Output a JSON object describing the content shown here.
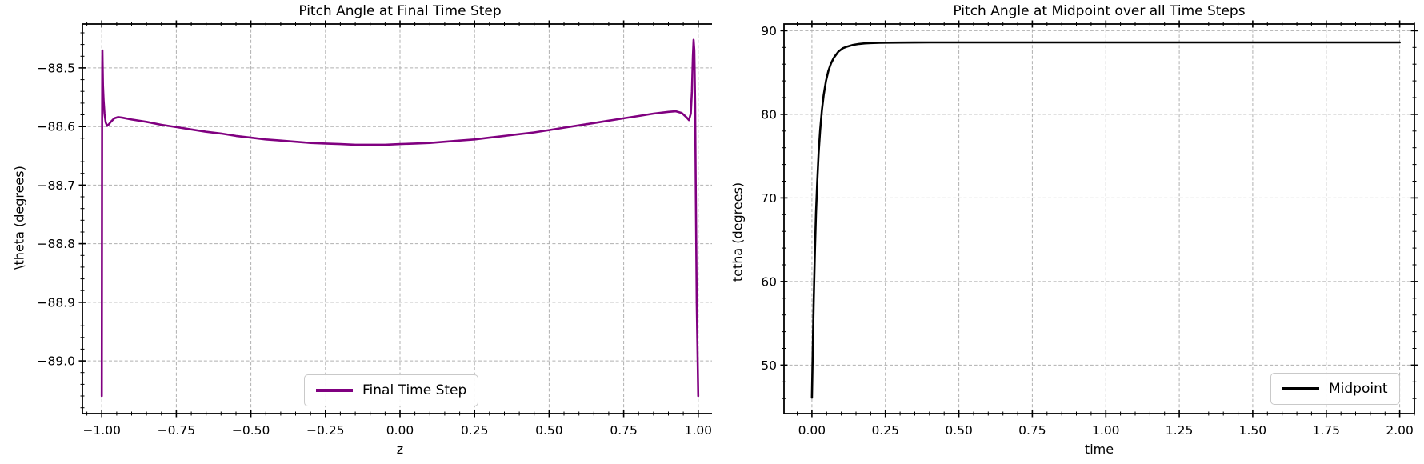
{
  "figure": {
    "background": "#ffffff",
    "grid_color": "#b0b0b0",
    "spine_color": "#000000"
  },
  "chart_data": [
    {
      "type": "line",
      "title": "Pitch Angle at Final Time Step",
      "xlabel": "z",
      "ylabel": "\\theta (degrees)",
      "grid": true,
      "legend": {
        "label": "Final Time Step",
        "position": "lower center"
      },
      "xlim": [
        -1.065,
        1.065
      ],
      "ylim": [
        -89.09,
        -88.425
      ],
      "x_major": {
        "values": [
          -1.0,
          -0.75,
          -0.5,
          -0.25,
          0.0,
          0.25,
          0.5,
          0.75,
          1.0
        ],
        "labels": [
          "−1.00",
          "−0.75",
          "−0.50",
          "−0.25",
          "0.00",
          "0.25",
          "0.50",
          "0.75",
          "1.00"
        ],
        "minor_step": 0.05
      },
      "y_major": {
        "values": [
          -89.0,
          -88.9,
          -88.8,
          -88.7,
          -88.6,
          -88.5
        ],
        "labels": [
          "−89.0",
          "−88.9",
          "−88.8",
          "−88.7",
          "−88.6",
          "−88.5"
        ],
        "minor_step": 0.02
      },
      "series": [
        {
          "name": "Final Time Step",
          "color": "#800080",
          "width": 2.6,
          "points": [
            [
              -1.0,
              -89.06
            ],
            [
              -0.9995,
              -88.85
            ],
            [
              -0.999,
              -88.62
            ],
            [
              -0.9985,
              -88.5
            ],
            [
              -0.998,
              -88.47
            ],
            [
              -0.9975,
              -88.49
            ],
            [
              -0.996,
              -88.53
            ],
            [
              -0.994,
              -88.555
            ],
            [
              -0.991,
              -88.578
            ],
            [
              -0.987,
              -88.593
            ],
            [
              -0.982,
              -88.599
            ],
            [
              -0.976,
              -88.596
            ],
            [
              -0.968,
              -88.591
            ],
            [
              -0.958,
              -88.586
            ],
            [
              -0.945,
              -88.584
            ],
            [
              -0.93,
              -88.585
            ],
            [
              -0.9,
              -88.588
            ],
            [
              -0.85,
              -88.592
            ],
            [
              -0.8,
              -88.597
            ],
            [
              -0.75,
              -88.601
            ],
            [
              -0.7,
              -88.605
            ],
            [
              -0.65,
              -88.609
            ],
            [
              -0.6,
              -88.612
            ],
            [
              -0.55,
              -88.616
            ],
            [
              -0.5,
              -88.619
            ],
            [
              -0.45,
              -88.622
            ],
            [
              -0.4,
              -88.624
            ],
            [
              -0.35,
              -88.626
            ],
            [
              -0.3,
              -88.628
            ],
            [
              -0.25,
              -88.629
            ],
            [
              -0.2,
              -88.63
            ],
            [
              -0.15,
              -88.631
            ],
            [
              -0.1,
              -88.631
            ],
            [
              -0.05,
              -88.631
            ],
            [
              0.0,
              -88.63
            ],
            [
              0.05,
              -88.629
            ],
            [
              0.1,
              -88.628
            ],
            [
              0.15,
              -88.626
            ],
            [
              0.2,
              -88.624
            ],
            [
              0.25,
              -88.622
            ],
            [
              0.3,
              -88.619
            ],
            [
              0.35,
              -88.616
            ],
            [
              0.4,
              -88.613
            ],
            [
              0.45,
              -88.61
            ],
            [
              0.5,
              -88.606
            ],
            [
              0.55,
              -88.602
            ],
            [
              0.6,
              -88.598
            ],
            [
              0.65,
              -88.594
            ],
            [
              0.7,
              -88.59
            ],
            [
              0.75,
              -88.586
            ],
            [
              0.8,
              -88.582
            ],
            [
              0.85,
              -88.578
            ],
            [
              0.9,
              -88.575
            ],
            [
              0.925,
              -88.574
            ],
            [
              0.945,
              -88.577
            ],
            [
              0.96,
              -88.584
            ],
            [
              0.969,
              -88.589
            ],
            [
              0.975,
              -88.578
            ],
            [
              0.979,
              -88.54
            ],
            [
              0.982,
              -88.48
            ],
            [
              0.9845,
              -88.452
            ],
            [
              0.987,
              -88.47
            ],
            [
              0.9895,
              -88.56
            ],
            [
              0.992,
              -88.72
            ],
            [
              0.995,
              -88.9
            ],
            [
              1.0,
              -89.06
            ]
          ]
        }
      ]
    },
    {
      "type": "line",
      "title": "Pitch Angle at Midpoint over all Time Steps",
      "xlabel": "time",
      "ylabel": "tetha (degrees)",
      "grid": true,
      "legend": {
        "label": "Midpoint",
        "position": "lower right"
      },
      "xlim": [
        -0.095,
        2.05
      ],
      "ylim": [
        44.2,
        90.8
      ],
      "x_major": {
        "values": [
          0.0,
          0.25,
          0.5,
          0.75,
          1.0,
          1.25,
          1.5,
          1.75,
          2.0
        ],
        "labels": [
          "0.00",
          "0.25",
          "0.50",
          "0.75",
          "1.00",
          "1.25",
          "1.50",
          "1.75",
          "2.00"
        ],
        "minor_step": 0.05
      },
      "y_major": {
        "values": [
          50,
          60,
          70,
          80,
          90
        ],
        "labels": [
          "50",
          "60",
          "70",
          "80",
          "90"
        ],
        "minor_step": 2
      },
      "series": [
        {
          "name": "Midpoint",
          "color": "#000000",
          "width": 2.6,
          "points": [
            [
              0.0,
              46.1
            ],
            [
              0.003,
              52.0
            ],
            [
              0.006,
              57.5
            ],
            [
              0.01,
              63.5
            ],
            [
              0.014,
              68.2
            ],
            [
              0.018,
              71.8
            ],
            [
              0.023,
              75.4
            ],
            [
              0.028,
              78.1
            ],
            [
              0.034,
              80.5
            ],
            [
              0.04,
              82.3
            ],
            [
              0.048,
              84.0
            ],
            [
              0.056,
              85.2
            ],
            [
              0.065,
              86.1
            ],
            [
              0.075,
              86.8
            ],
            [
              0.09,
              87.5
            ],
            [
              0.105,
              87.9
            ],
            [
              0.12,
              88.1
            ],
            [
              0.14,
              88.3
            ],
            [
              0.16,
              88.42
            ],
            [
              0.18,
              88.48
            ],
            [
              0.2,
              88.52
            ],
            [
              0.23,
              88.55
            ],
            [
              0.26,
              88.57
            ],
            [
              0.3,
              88.58
            ],
            [
              0.35,
              88.59
            ],
            [
              0.4,
              88.6
            ],
            [
              0.5,
              88.6
            ],
            [
              0.6,
              88.6
            ],
            [
              0.8,
              88.6
            ],
            [
              1.0,
              88.6
            ],
            [
              1.25,
              88.6
            ],
            [
              1.5,
              88.6
            ],
            [
              1.75,
              88.6
            ],
            [
              2.0,
              88.6
            ]
          ]
        }
      ]
    }
  ]
}
